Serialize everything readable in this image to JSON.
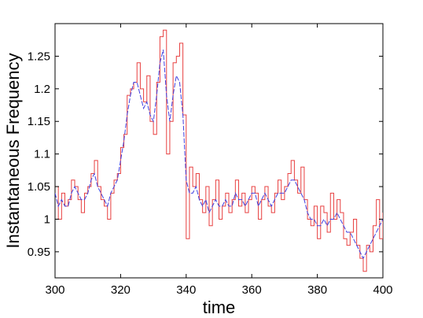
{
  "chart_data": {
    "type": "line",
    "xlabel": "time",
    "ylabel": "Instantaneous Frequency",
    "xlim": [
      300,
      400
    ],
    "ylim": [
      0.91,
      1.3
    ],
    "xticks": [
      300,
      320,
      340,
      360,
      380,
      400
    ],
    "xtick_labels": [
      "300",
      "320",
      "340",
      "360",
      "380",
      "400"
    ],
    "yticks": [
      0.95,
      1.0,
      1.05,
      1.1,
      1.15,
      1.2,
      1.25
    ],
    "ytick_labels": [
      "0.95",
      "1",
      "1.05",
      "1.1",
      "1.15",
      "1.2",
      "1.25"
    ],
    "grid": false,
    "series": [
      {
        "style": "step",
        "color": "#e84040",
        "x": [
          300,
          301,
          302,
          303,
          304,
          305,
          306,
          307,
          308,
          309,
          310,
          311,
          312,
          313,
          314,
          315,
          316,
          317,
          318,
          319,
          320,
          321,
          322,
          323,
          324,
          325,
          326,
          327,
          328,
          329,
          330,
          331,
          332,
          333,
          334,
          335,
          336,
          337,
          338,
          339,
          340,
          341,
          342,
          343,
          344,
          345,
          346,
          347,
          348,
          349,
          350,
          351,
          352,
          353,
          354,
          355,
          356,
          357,
          358,
          359,
          360,
          361,
          362,
          363,
          364,
          365,
          366,
          367,
          368,
          369,
          370,
          371,
          372,
          373,
          374,
          375,
          376,
          377,
          378,
          379,
          380,
          381,
          382,
          383,
          384,
          385,
          386,
          387,
          388,
          389,
          390,
          391,
          392,
          393,
          394,
          395,
          396,
          397,
          398,
          399,
          400
        ],
        "y": [
          1.05,
          1.0,
          1.04,
          1.02,
          1.03,
          1.06,
          1.05,
          1.03,
          1.01,
          1.04,
          1.05,
          1.07,
          1.09,
          1.05,
          1.03,
          1.02,
          1.0,
          1.04,
          1.06,
          1.07,
          1.11,
          1.13,
          1.19,
          1.2,
          1.21,
          1.24,
          1.2,
          1.18,
          1.22,
          1.15,
          1.13,
          1.21,
          1.28,
          1.29,
          1.1,
          1.15,
          1.24,
          1.25,
          1.27,
          1.16,
          0.97,
          1.08,
          1.05,
          1.07,
          1.03,
          1.01,
          1.05,
          0.99,
          1.03,
          1.06,
          1.0,
          1.02,
          1.04,
          1.01,
          1.03,
          1.06,
          1.02,
          1.04,
          1.01,
          1.03,
          1.05,
          1.04,
          1.0,
          1.03,
          1.05,
          1.02,
          1.01,
          1.04,
          1.06,
          1.03,
          1.05,
          1.07,
          1.09,
          1.06,
          1.04,
          1.08,
          1.03,
          1.0,
          0.99,
          1.02,
          0.97,
          1.02,
          1.01,
          0.98,
          1.04,
          1.0,
          1.03,
          1.01,
          0.97,
          0.96,
          0.98,
          1.0,
          0.96,
          0.94,
          0.92,
          0.96,
          0.95,
          0.99,
          1.03,
          0.97,
          1.01
        ]
      },
      {
        "style": "line",
        "color": "#4040e0",
        "x": [
          300,
          301,
          302,
          303,
          304,
          305,
          306,
          307,
          308,
          309,
          310,
          311,
          312,
          313,
          314,
          315,
          316,
          317,
          318,
          319,
          320,
          321,
          322,
          323,
          324,
          325,
          326,
          327,
          328,
          329,
          330,
          331,
          332,
          333,
          334,
          335,
          336,
          337,
          338,
          339,
          340,
          341,
          342,
          343,
          344,
          345,
          346,
          347,
          348,
          349,
          350,
          351,
          352,
          353,
          354,
          355,
          356,
          357,
          358,
          359,
          360,
          361,
          362,
          363,
          364,
          365,
          366,
          367,
          368,
          369,
          370,
          371,
          372,
          373,
          374,
          375,
          376,
          377,
          378,
          379,
          380,
          381,
          382,
          383,
          384,
          385,
          386,
          387,
          388,
          389,
          390,
          391,
          392,
          393,
          394,
          395,
          396,
          397,
          398,
          399,
          400
        ],
        "y": [
          1.04,
          1.02,
          1.03,
          1.02,
          1.02,
          1.04,
          1.05,
          1.04,
          1.03,
          1.03,
          1.04,
          1.06,
          1.07,
          1.05,
          1.04,
          1.03,
          1.02,
          1.04,
          1.05,
          1.06,
          1.09,
          1.12,
          1.16,
          1.19,
          1.21,
          1.21,
          1.19,
          1.17,
          1.18,
          1.16,
          1.15,
          1.19,
          1.24,
          1.26,
          1.19,
          1.15,
          1.19,
          1.22,
          1.21,
          1.16,
          1.06,
          1.04,
          1.04,
          1.05,
          1.03,
          1.02,
          1.03,
          1.01,
          1.02,
          1.03,
          1.02,
          1.02,
          1.03,
          1.02,
          1.02,
          1.04,
          1.03,
          1.03,
          1.02,
          1.03,
          1.04,
          1.04,
          1.02,
          1.03,
          1.04,
          1.03,
          1.02,
          1.03,
          1.04,
          1.04,
          1.04,
          1.05,
          1.06,
          1.06,
          1.05,
          1.04,
          1.03,
          1.01,
          1.0,
          1.0,
          0.99,
          0.99,
          1.0,
          0.99,
          1.0,
          1.0,
          1.01,
          1.0,
          0.99,
          0.98,
          0.98,
          0.97,
          0.96,
          0.95,
          0.94,
          0.95,
          0.96,
          0.97,
          0.98,
          0.99,
          1.0
        ]
      }
    ]
  }
}
